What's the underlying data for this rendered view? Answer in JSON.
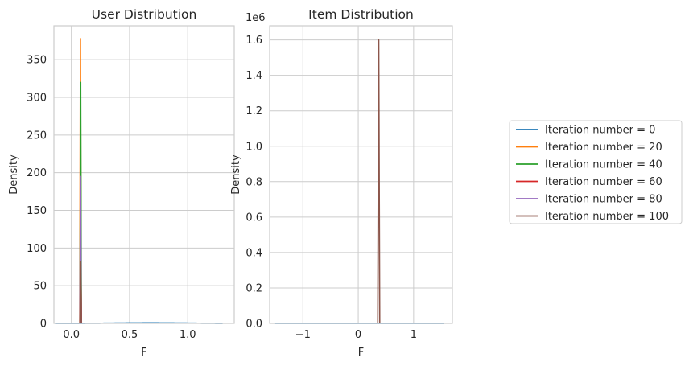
{
  "colors": {
    "iter0": "#1f77b4",
    "iter20": "#ff7f0e",
    "iter40": "#2ca02c",
    "iter60": "#d62728",
    "iter80": "#9467bd",
    "iter100": "#8c564b",
    "grid": "#cccccc"
  },
  "legend": {
    "placement": "right",
    "entries": [
      "Iteration number = 0",
      "Iteration number = 20",
      "Iteration number = 40",
      "Iteration number = 60",
      "Iteration number = 80",
      "Iteration number = 100"
    ]
  },
  "chart_data": [
    {
      "type": "line",
      "title": "User Distribution",
      "xlabel": "F",
      "ylabel": "Density",
      "xlim": [
        -0.15,
        1.4
      ],
      "ylim": [
        0,
        395
      ],
      "xticks": [
        0.0,
        0.5,
        1.0
      ],
      "xtick_labels": [
        "0.0",
        "0.5",
        "1.0"
      ],
      "yticks": [
        0,
        50,
        100,
        150,
        200,
        250,
        300,
        350
      ],
      "ytick_labels": [
        "0",
        "50",
        "100",
        "150",
        "200",
        "250",
        "300",
        "350"
      ],
      "offset_label": "",
      "grid": true,
      "series": [
        {
          "name": "Iteration number = 0",
          "color": "#1f77b4",
          "kind": "broad",
          "center": 0.68,
          "sigma": 0.3,
          "peak": 0.7,
          "support": [
            -0.14,
            1.3
          ]
        },
        {
          "name": "Iteration number = 20",
          "color": "#ff7f0e",
          "kind": "spike",
          "center": 0.078,
          "halfwidth": 0.006,
          "peak": 378
        },
        {
          "name": "Iteration number = 40",
          "color": "#2ca02c",
          "kind": "spike",
          "center": 0.08,
          "halfwidth": 0.006,
          "peak": 320
        },
        {
          "name": "Iteration number = 60",
          "color": "#d62728",
          "kind": "spike",
          "center": 0.081,
          "halfwidth": 0.006,
          "peak": 78
        },
        {
          "name": "Iteration number = 80",
          "color": "#9467bd",
          "kind": "spike",
          "center": 0.079,
          "halfwidth": 0.006,
          "peak": 195
        },
        {
          "name": "Iteration number = 100",
          "color": "#8c564b",
          "kind": "spike",
          "center": 0.08,
          "halfwidth": 0.006,
          "peak": 82
        }
      ]
    },
    {
      "type": "line",
      "title": "Item Distribution",
      "xlabel": "F",
      "ylabel": "Density",
      "xlim": [
        -1.6,
        1.7
      ],
      "ylim": [
        0,
        1680000
      ],
      "xticks": [
        -1,
        0,
        1
      ],
      "xtick_labels": [
        "−1",
        "0",
        "1"
      ],
      "yticks": [
        0,
        200000,
        400000,
        600000,
        800000,
        1000000,
        1200000,
        1400000,
        1600000
      ],
      "ytick_labels": [
        "0.0",
        "0.2",
        "0.4",
        "0.6",
        "0.8",
        "1.0",
        "1.2",
        "1.4",
        "1.6"
      ],
      "offset_label": "1e6",
      "grid": true,
      "series": [
        {
          "name": "Iteration number = 0",
          "color": "#1f77b4",
          "kind": "flat",
          "support": [
            -1.5,
            1.55
          ],
          "value": 0
        },
        {
          "name": "Iteration number = 100",
          "color": "#8c564b",
          "kind": "spike",
          "center": 0.37,
          "halfwidth": 0.018,
          "peak": 1600000
        }
      ]
    }
  ]
}
